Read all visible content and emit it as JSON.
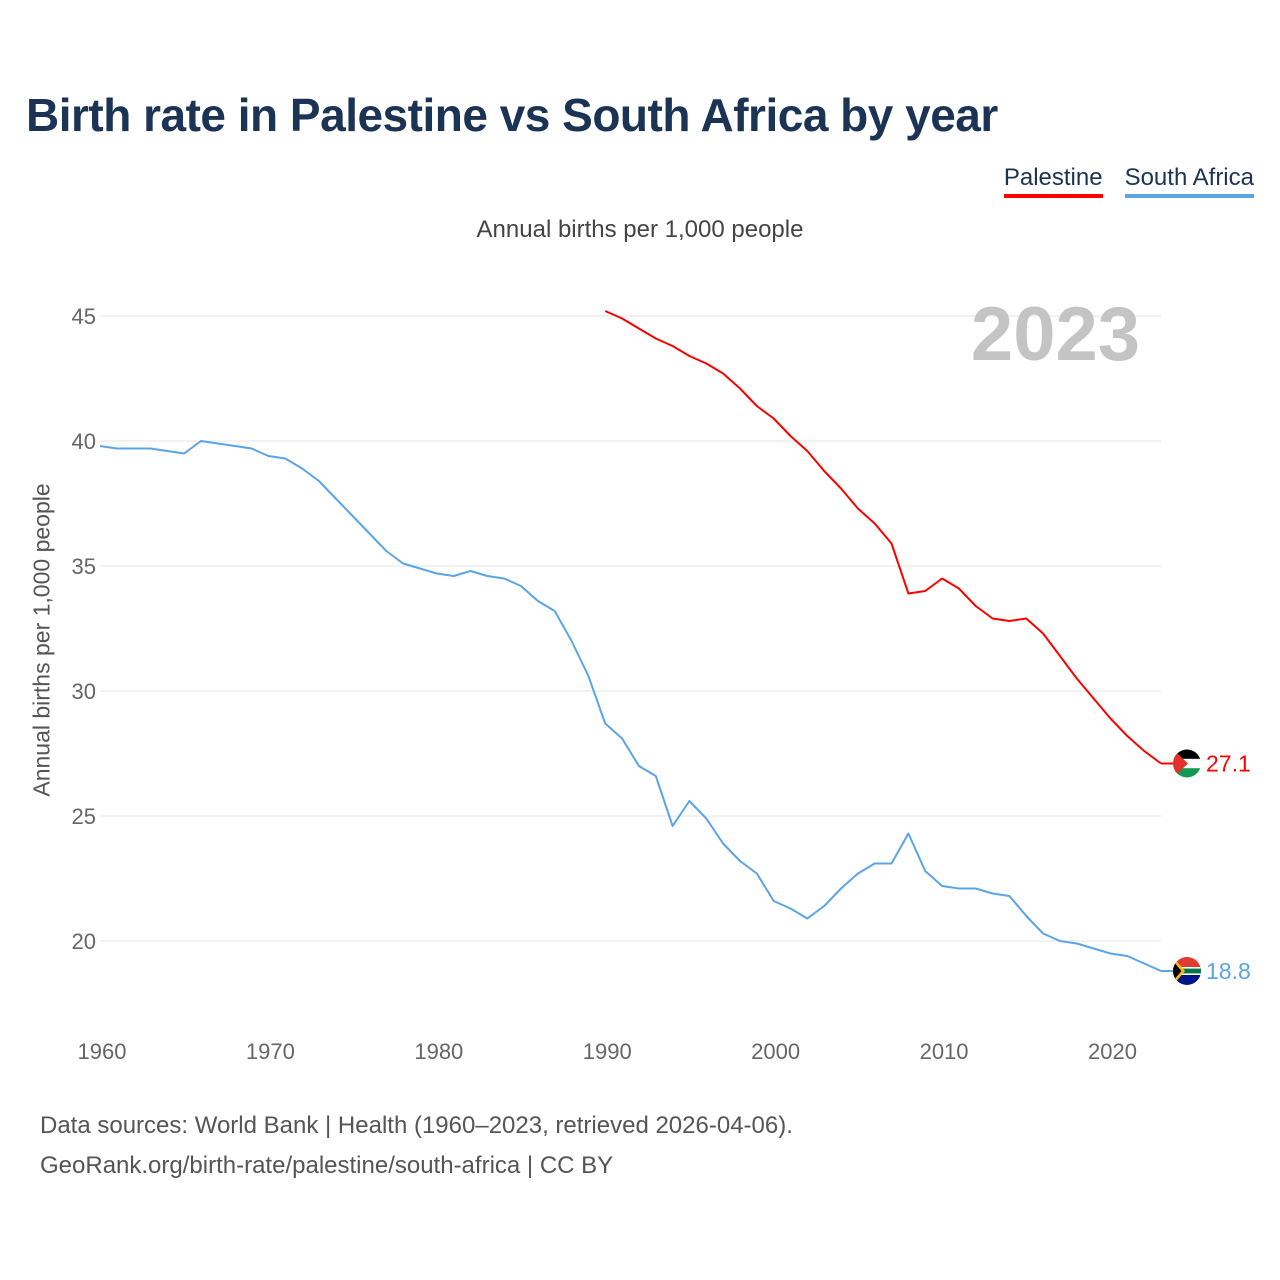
{
  "title": "Birth rate in Palestine vs South Africa by year",
  "legend": [
    {
      "name": "Palestine",
      "color": "#ff0000"
    },
    {
      "name": "South Africa",
      "color": "#5ba4e6"
    }
  ],
  "subtitle": "Annual births per 1,000 people",
  "year_watermark": "2023",
  "footer": {
    "line1": "Data sources: World Bank | Health (1960–2023, retrieved 2026-04-06).",
    "line2": "GeoRank.org/birth-rate/palestine/south-africa | CC BY"
  },
  "chart_data": {
    "type": "line",
    "title": "Birth rate in Palestine vs South Africa by year",
    "ylabel": "Annual births per 1,000 people",
    "xlabel": "",
    "xlim": [
      1960,
      2023
    ],
    "ylim": [
      18,
      47
    ],
    "yticks": [
      20,
      25,
      30,
      35,
      40,
      45
    ],
    "xticks": [
      1960,
      1970,
      1980,
      1990,
      2000,
      2010,
      2020
    ],
    "grid": true,
    "series": [
      {
        "name": "Palestine",
        "color": "#ff0000",
        "end_label": "27.1",
        "x": [
          1990,
          1991,
          1992,
          1993,
          1994,
          1995,
          1996,
          1997,
          1998,
          1999,
          2000,
          2001,
          2002,
          2003,
          2004,
          2005,
          2006,
          2007,
          2008,
          2009,
          2010,
          2011,
          2012,
          2013,
          2014,
          2015,
          2016,
          2017,
          2018,
          2019,
          2020,
          2021,
          2022,
          2023
        ],
        "values": [
          45.2,
          44.9,
          44.5,
          44.1,
          43.8,
          43.4,
          43.1,
          42.7,
          42.1,
          41.4,
          40.9,
          40.2,
          39.6,
          38.8,
          38.1,
          37.3,
          36.7,
          35.9,
          33.9,
          34.0,
          34.5,
          34.1,
          33.4,
          32.9,
          32.8,
          32.9,
          32.3,
          31.4,
          30.5,
          29.7,
          28.9,
          28.2,
          27.6,
          27.1
        ]
      },
      {
        "name": "South Africa",
        "color": "#5ba4e6",
        "end_label": "18.8",
        "x": [
          1960,
          1961,
          1962,
          1963,
          1964,
          1965,
          1966,
          1967,
          1968,
          1969,
          1970,
          1971,
          1972,
          1973,
          1974,
          1975,
          1976,
          1977,
          1978,
          1979,
          1980,
          1981,
          1982,
          1983,
          1984,
          1985,
          1986,
          1987,
          1988,
          1989,
          1990,
          1991,
          1992,
          1993,
          1994,
          1995,
          1996,
          1997,
          1998,
          1999,
          2000,
          2001,
          2002,
          2003,
          2004,
          2005,
          2006,
          2007,
          2008,
          2009,
          2010,
          2011,
          2012,
          2013,
          2014,
          2015,
          2016,
          2017,
          2018,
          2019,
          2020,
          2021,
          2022,
          2023
        ],
        "values": [
          39.8,
          39.7,
          39.7,
          39.7,
          39.6,
          39.5,
          40.0,
          39.9,
          39.8,
          39.7,
          39.4,
          39.3,
          38.9,
          38.4,
          37.7,
          37.0,
          36.3,
          35.6,
          35.1,
          34.9,
          34.7,
          34.6,
          34.8,
          34.6,
          34.5,
          34.2,
          33.6,
          33.2,
          32.0,
          30.6,
          28.7,
          28.1,
          27.0,
          26.6,
          24.6,
          25.6,
          24.9,
          23.9,
          23.2,
          22.7,
          21.6,
          21.3,
          20.9,
          21.4,
          22.1,
          22.7,
          23.1,
          23.1,
          24.3,
          22.8,
          22.2,
          22.1,
          22.1,
          21.9,
          21.8,
          21.0,
          20.3,
          20.0,
          19.9,
          19.7,
          19.5,
          19.4,
          19.1,
          18.8
        ]
      }
    ]
  }
}
